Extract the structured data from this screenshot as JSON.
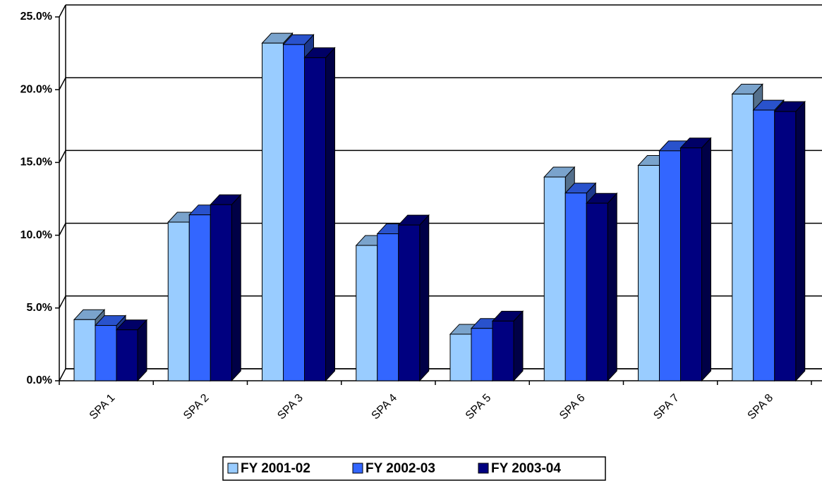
{
  "chart_data": {
    "type": "bar3d",
    "categories": [
      "SPA 1",
      "SPA 2",
      "SPA 3",
      "SPA 4",
      "SPA 5",
      "SPA 6",
      "SPA 7",
      "SPA 8"
    ],
    "series": [
      {
        "name": "FY 2001-02",
        "color": "#99ccff",
        "values": [
          4.2,
          10.9,
          23.2,
          9.3,
          3.2,
          14.0,
          14.8,
          19.7
        ]
      },
      {
        "name": "FY 2002-03",
        "color": "#3366ff",
        "values": [
          3.8,
          11.4,
          23.1,
          10.1,
          3.6,
          12.9,
          15.8,
          18.6
        ]
      },
      {
        "name": "FY 2003-04",
        "color": "#000080",
        "values": [
          3.5,
          12.1,
          22.2,
          10.7,
          4.1,
          12.2,
          16.0,
          18.5
        ]
      }
    ],
    "ylim": [
      0,
      25
    ],
    "yticks": [
      {
        "value": 0,
        "label": "0.0%"
      },
      {
        "value": 5,
        "label": "5.0%"
      },
      {
        "value": 10,
        "label": "10.0%"
      },
      {
        "value": 15,
        "label": "15.0%"
      },
      {
        "value": 20,
        "label": "20.0%"
      },
      {
        "value": 25,
        "label": "25.0%"
      }
    ],
    "grid": true,
    "legend": "bottom"
  }
}
